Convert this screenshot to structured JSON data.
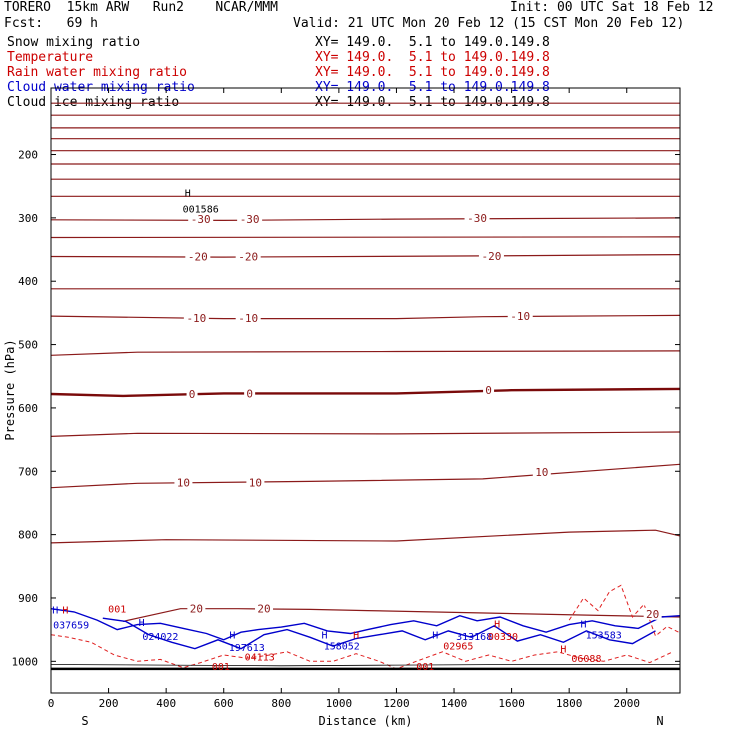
{
  "header": {
    "model": "TORERO  15km ARW   Run2    NCAR/MMM",
    "init": "Init: 00 UTC Sat 18 Feb 12",
    "fcst": "Fcst:   69 h",
    "valid": "Valid: 21 UTC Mon 20 Feb 12 (15 CST Mon 20 Feb 12)",
    "fields": [
      {
        "name": "Snow mixing ratio",
        "xy": "XY= 149.0.  5.1 to 149.0.149.8",
        "color": "#000000"
      },
      {
        "name": "Temperature",
        "xy": "XY= 149.0.  5.1 to 149.0.149.8",
        "color": "#cc0000"
      },
      {
        "name": "Rain water mixing ratio",
        "xy": "XY= 149.0.  5.1 to 149.0.149.8",
        "color": "#cc0000"
      },
      {
        "name": "Cloud water mixing ratio",
        "xy": "XY= 149.0.  5.1 to 149.0.149.8",
        "color": "#0000cc"
      },
      {
        "name": "Cloud ice mixing ratio",
        "xy": "XY= 149.0.  5.1 to 149.0.149.8",
        "color": "#000000"
      }
    ]
  },
  "chart_data": {
    "type": "line",
    "xlabel": "Distance (km)",
    "ylabel": "Pressure (hPa)",
    "xlim": [
      0,
      2185
    ],
    "ylim": [
      1050,
      95
    ],
    "y_log": false,
    "x_ticks": [
      0,
      200,
      400,
      600,
      800,
      1000,
      1200,
      1400,
      1600,
      1800,
      2000
    ],
    "y_ticks": [
      200,
      300,
      400,
      500,
      600,
      700,
      800,
      900,
      1000
    ],
    "x_end_labels": {
      "left": "S",
      "right": "N"
    },
    "temperature_isotherms": [
      {
        "label": "",
        "points": [
          [
            0,
            119
          ],
          [
            2185,
            119
          ]
        ]
      },
      {
        "label": "",
        "points": [
          [
            0,
            138
          ],
          [
            2185,
            138
          ]
        ]
      },
      {
        "label": "",
        "points": [
          [
            0,
            158
          ],
          [
            2185,
            158
          ]
        ]
      },
      {
        "label": "",
        "points": [
          [
            0,
            175
          ],
          [
            2185,
            175
          ]
        ]
      },
      {
        "label": "",
        "points": [
          [
            0,
            194
          ],
          [
            2185,
            194
          ]
        ]
      },
      {
        "label": "",
        "points": [
          [
            0,
            215
          ],
          [
            2185,
            215
          ]
        ]
      },
      {
        "label": "",
        "points": [
          [
            0,
            239
          ],
          [
            2185,
            239
          ]
        ]
      },
      {
        "label": "",
        "points": [
          [
            0,
            266
          ],
          [
            2185,
            266
          ]
        ]
      },
      {
        "label": "-30",
        "points": [
          [
            0,
            303
          ],
          [
            600,
            304
          ],
          [
            1200,
            302
          ],
          [
            2185,
            300
          ]
        ]
      },
      {
        "label": "",
        "points": [
          [
            0,
            331
          ],
          [
            2185,
            330
          ]
        ]
      },
      {
        "label": "-20",
        "points": [
          [
            0,
            361
          ],
          [
            600,
            362
          ],
          [
            1500,
            360
          ],
          [
            2185,
            358
          ]
        ]
      },
      {
        "label": "",
        "points": [
          [
            0,
            412
          ],
          [
            2185,
            412
          ]
        ]
      },
      {
        "label": "-10",
        "points": [
          [
            0,
            455
          ],
          [
            600,
            459
          ],
          [
            1200,
            459
          ],
          [
            1500,
            456
          ],
          [
            2185,
            454
          ]
        ]
      },
      {
        "label": "",
        "points": [
          [
            0,
            517
          ],
          [
            300,
            512
          ],
          [
            1200,
            511
          ],
          [
            2185,
            510
          ]
        ]
      },
      {
        "label": "0",
        "points": [
          [
            0,
            578
          ],
          [
            250,
            581
          ],
          [
            600,
            577
          ],
          [
            1200,
            577
          ],
          [
            1600,
            572
          ],
          [
            2185,
            570
          ]
        ]
      },
      {
        "label": "",
        "points": [
          [
            0,
            645
          ],
          [
            300,
            640
          ],
          [
            1200,
            641
          ],
          [
            2185,
            638
          ]
        ]
      },
      {
        "label": "10",
        "points": [
          [
            0,
            726
          ],
          [
            300,
            719
          ],
          [
            900,
            716
          ],
          [
            1500,
            712
          ],
          [
            2185,
            689
          ]
        ]
      },
      {
        "label": "",
        "points": [
          [
            0,
            813
          ],
          [
            400,
            808
          ],
          [
            1200,
            810
          ],
          [
            1800,
            796
          ],
          [
            2100,
            793
          ],
          [
            2185,
            802
          ]
        ]
      },
      {
        "label": "20",
        "points": [
          [
            250,
            937
          ],
          [
            450,
            917
          ],
          [
            650,
            917
          ],
          [
            900,
            918
          ],
          [
            1100,
            920
          ],
          [
            2185,
            930
          ]
        ]
      }
    ],
    "isotherm_labels": [
      {
        "text": "-30",
        "x": 520,
        "p": 302
      },
      {
        "text": "-30",
        "x": 690,
        "p": 302
      },
      {
        "text": "-30",
        "x": 1480,
        "p": 300
      },
      {
        "text": "-20",
        "x": 510,
        "p": 361
      },
      {
        "text": "-20",
        "x": 685,
        "p": 361
      },
      {
        "text": "-20",
        "x": 1530,
        "p": 360
      },
      {
        "text": "-10",
        "x": 505,
        "p": 458
      },
      {
        "text": "-10",
        "x": 685,
        "p": 458
      },
      {
        "text": "-10",
        "x": 1630,
        "p": 455
      },
      {
        "text": "0",
        "x": 490,
        "p": 578
      },
      {
        "text": "0",
        "x": 690,
        "p": 577
      },
      {
        "text": "0",
        "x": 1520,
        "p": 572
      },
      {
        "text": "10",
        "x": 460,
        "p": 718
      },
      {
        "text": "10",
        "x": 710,
        "p": 718
      },
      {
        "text": "10",
        "x": 1705,
        "p": 701
      },
      {
        "text": "20",
        "x": 505,
        "p": 917
      },
      {
        "text": "20",
        "x": 740,
        "p": 917
      },
      {
        "text": "20",
        "x": 2090,
        "p": 925
      }
    ],
    "cloud_water_contours": [
      {
        "points": [
          [
            0,
            917
          ],
          [
            80,
            922
          ],
          [
            160,
            935
          ],
          [
            230,
            950
          ],
          [
            300,
            942
          ],
          [
            380,
            940
          ],
          [
            460,
            948
          ],
          [
            540,
            956
          ],
          [
            600,
            966
          ],
          [
            660,
            954
          ],
          [
            720,
            950
          ],
          [
            800,
            946
          ],
          [
            880,
            940
          ],
          [
            960,
            952
          ],
          [
            1040,
            956
          ],
          [
            1100,
            950
          ],
          [
            1180,
            942
          ],
          [
            1260,
            936
          ],
          [
            1340,
            944
          ],
          [
            1420,
            928
          ],
          [
            1480,
            936
          ],
          [
            1560,
            930
          ],
          [
            1640,
            944
          ],
          [
            1720,
            954
          ],
          [
            1800,
            942
          ],
          [
            1880,
            936
          ],
          [
            1960,
            944
          ],
          [
            2040,
            948
          ],
          [
            2120,
            930
          ],
          [
            2185,
            928
          ]
        ]
      },
      {
        "points": [
          [
            180,
            932
          ],
          [
            260,
            937
          ],
          [
            340,
            958
          ],
          [
            420,
            970
          ],
          [
            500,
            980
          ],
          [
            580,
            966
          ],
          [
            660,
            980
          ],
          [
            740,
            958
          ],
          [
            820,
            950
          ],
          [
            900,
            962
          ],
          [
            980,
            976
          ],
          [
            1060,
            964
          ],
          [
            1140,
            958
          ],
          [
            1220,
            952
          ],
          [
            1300,
            966
          ],
          [
            1380,
            952
          ],
          [
            1460,
            962
          ],
          [
            1540,
            944
          ],
          [
            1620,
            968
          ],
          [
            1700,
            958
          ],
          [
            1780,
            970
          ],
          [
            1860,
            952
          ],
          [
            1940,
            966
          ],
          [
            2020,
            972
          ],
          [
            2100,
            952
          ]
        ]
      }
    ],
    "rain_contours": [
      {
        "points": [
          [
            0,
            958
          ],
          [
            60,
            962
          ],
          [
            140,
            970
          ],
          [
            220,
            990
          ],
          [
            300,
            1000
          ],
          [
            380,
            997
          ],
          [
            460,
            1010
          ],
          [
            520,
            1002
          ],
          [
            600,
            990
          ],
          [
            680,
            995
          ],
          [
            760,
            990
          ],
          [
            820,
            985
          ],
          [
            900,
            1000
          ],
          [
            980,
            1000
          ],
          [
            1060,
            988
          ],
          [
            1140,
            1000
          ],
          [
            1200,
            1012
          ],
          [
            1280,
            998
          ],
          [
            1360,
            985
          ],
          [
            1440,
            1000
          ],
          [
            1520,
            990
          ],
          [
            1600,
            1000
          ],
          [
            1680,
            990
          ],
          [
            1760,
            985
          ],
          [
            1840,
            995
          ],
          [
            1920,
            1000
          ],
          [
            2000,
            990
          ],
          [
            2080,
            1002
          ],
          [
            2160,
            985
          ]
        ]
      },
      {
        "points": [
          [
            1800,
            935
          ],
          [
            1850,
            900
          ],
          [
            1900,
            920
          ],
          [
            1940,
            890
          ],
          [
            1980,
            880
          ],
          [
            2020,
            930
          ],
          [
            2060,
            910
          ],
          [
            2100,
            960
          ],
          [
            2140,
            945
          ],
          [
            2185,
            955
          ]
        ]
      }
    ],
    "snow_contours": [
      {
        "points": [
          [
            0,
            1005
          ],
          [
            400,
            1006
          ],
          [
            800,
            1007
          ],
          [
            1200,
            1006
          ],
          [
            1600,
            1005
          ],
          [
            2185,
            1005
          ]
        ]
      }
    ],
    "ground_p": 1012,
    "point_labels": [
      {
        "text": "H",
        "x": 475,
        "p": 260,
        "color": "#000000"
      },
      {
        "text": "001586",
        "x": 520,
        "p": 285,
        "color": "#000000"
      },
      {
        "text": "H",
        "x": 15,
        "p": 918,
        "color": "#0000cc"
      },
      {
        "text": "H",
        "x": 50,
        "p": 918,
        "color": "#cc0000"
      },
      {
        "text": "001",
        "x": 230,
        "p": 917,
        "color": "#cc0000"
      },
      {
        "text": "037659",
        "x": 70,
        "p": 942,
        "color": "#0000cc"
      },
      {
        "text": "H",
        "x": 315,
        "p": 938,
        "color": "#0000cc"
      },
      {
        "text": "024022",
        "x": 380,
        "p": 960,
        "color": "#0000cc"
      },
      {
        "text": "H",
        "x": 630,
        "p": 958,
        "color": "#0000cc"
      },
      {
        "text": "197613",
        "x": 680,
        "p": 977,
        "color": "#0000cc"
      },
      {
        "text": "04113",
        "x": 725,
        "p": 992,
        "color": "#cc0000"
      },
      {
        "text": "H",
        "x": 950,
        "p": 958,
        "color": "#0000cc"
      },
      {
        "text": "H",
        "x": 1060,
        "p": 958,
        "color": "#cc0000"
      },
      {
        "text": "158052",
        "x": 1010,
        "p": 975,
        "color": "#0000cc"
      },
      {
        "text": "H",
        "x": 1335,
        "p": 958,
        "color": "#0000cc"
      },
      {
        "text": "02965",
        "x": 1415,
        "p": 975,
        "color": "#cc0000"
      },
      {
        "text": "313168",
        "x": 1470,
        "p": 960,
        "color": "#0000cc"
      },
      {
        "text": "00330",
        "x": 1570,
        "p": 960,
        "color": "#cc0000"
      },
      {
        "text": "H",
        "x": 1550,
        "p": 940,
        "color": "#cc0000"
      },
      {
        "text": "H",
        "x": 1850,
        "p": 940,
        "color": "#0000cc"
      },
      {
        "text": "153583",
        "x": 1920,
        "p": 958,
        "color": "#0000cc"
      },
      {
        "text": "H",
        "x": 1780,
        "p": 980,
        "color": "#cc0000"
      },
      {
        "text": "06088",
        "x": 1860,
        "p": 995,
        "color": "#cc0000"
      },
      {
        "text": "001",
        "x": 590,
        "p": 1007,
        "color": "#cc0000"
      },
      {
        "text": "001",
        "x": 1300,
        "p": 1007,
        "color": "#cc0000"
      }
    ]
  },
  "colors": {
    "temperature": "#8b1a1a",
    "temperature_zero": "#7a0a0a",
    "cloud_water": "#0000cc",
    "rain": "#e02020",
    "snow": "#000000",
    "axis": "#000000"
  }
}
